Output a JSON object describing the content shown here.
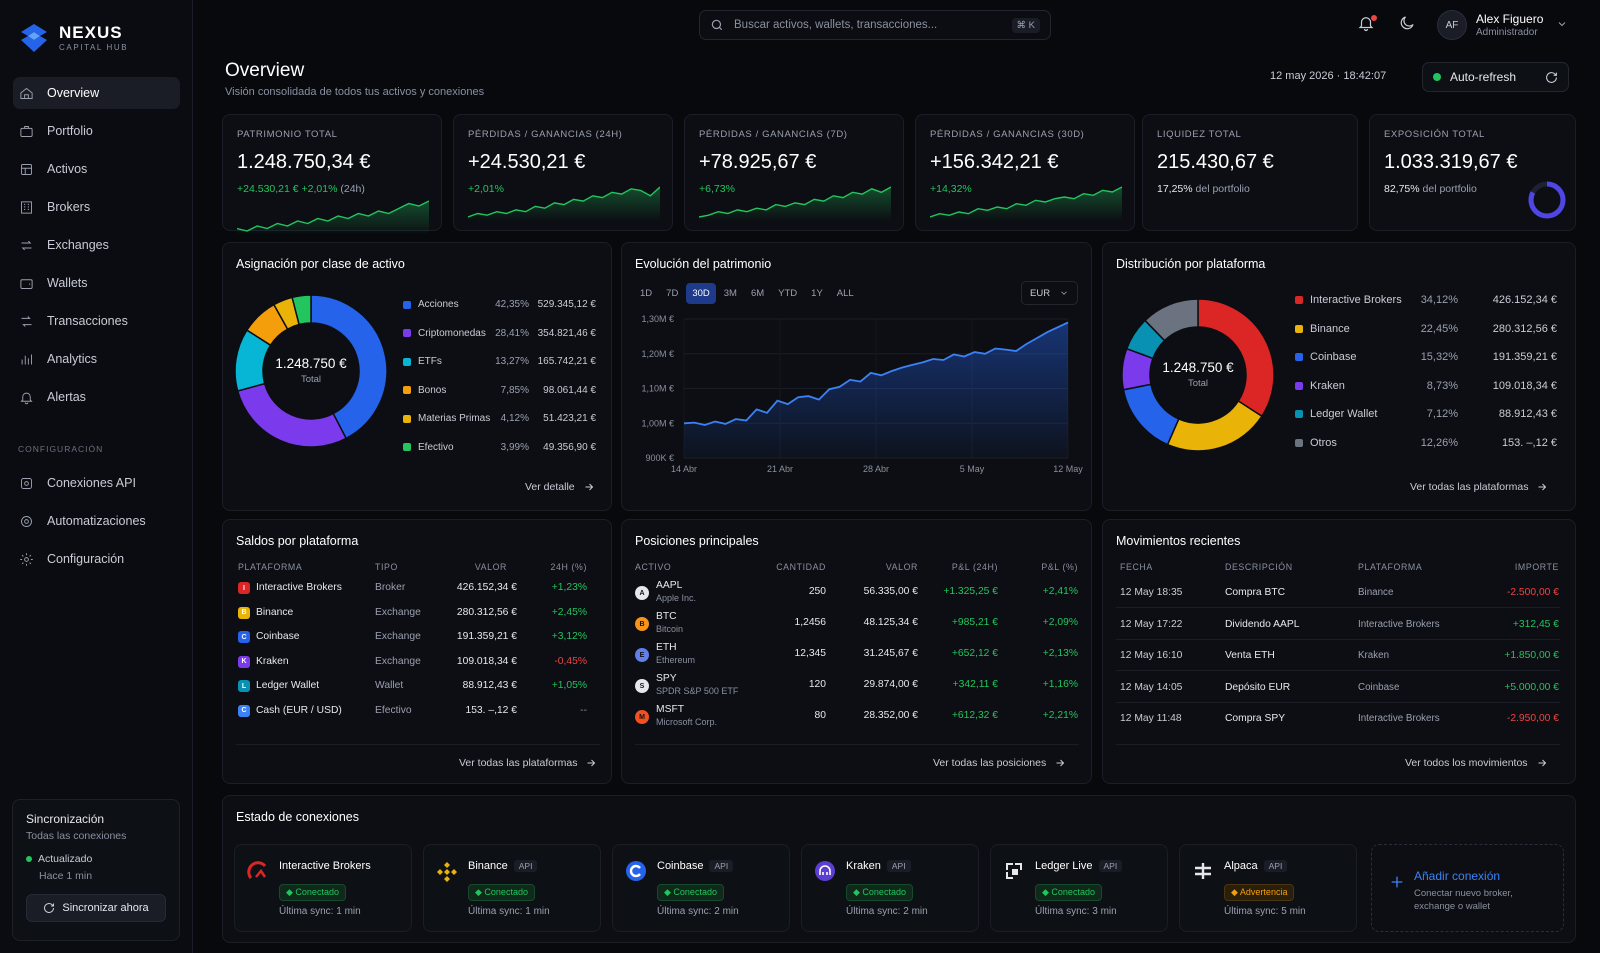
{
  "brand": {
    "title": "NEXUS",
    "subtitle": "CAPITAL HUB"
  },
  "nav": [
    {
      "label": "Overview",
      "icon": "home-icon"
    },
    {
      "label": "Portfolio",
      "icon": "briefcase-icon"
    },
    {
      "label": "Activos",
      "icon": "layers-icon"
    },
    {
      "label": "Brokers",
      "icon": "building-icon"
    },
    {
      "label": "Exchanges",
      "icon": "exchange-icon"
    },
    {
      "label": "Wallets",
      "icon": "wallet-icon"
    },
    {
      "label": "Transacciones",
      "icon": "arrows-icon"
    },
    {
      "label": "Analytics",
      "icon": "bar-chart-icon"
    },
    {
      "label": "Alertas",
      "icon": "bell-icon"
    }
  ],
  "config_section": "CONFIGURACIÓN",
  "config_nav": [
    {
      "label": "Conexiones API",
      "icon": "plug-icon"
    },
    {
      "label": "Automatizaciones",
      "icon": "automation-icon"
    },
    {
      "label": "Configuración",
      "icon": "gear-icon"
    }
  ],
  "sync": {
    "title": "Sincronización",
    "subtitle": "Todas las conexiones",
    "status": "Actualizado",
    "ago": "Hace 1 min",
    "button": "Sincronizar ahora"
  },
  "search": {
    "placeholder": "Buscar activos, wallets, transacciones...",
    "shortcut": "⌘ K"
  },
  "user": {
    "initials": "AF",
    "name": "Alex Figuero",
    "role": "Administrador"
  },
  "header": {
    "title": "Overview",
    "subtitle": "Visión consolidada de todos tus activos y conexiones",
    "datetime": "12 may 2026 · 18:42:07",
    "autorefresh": "Auto-refresh"
  },
  "kpis": [
    {
      "label": "PATRIMONIO TOTAL",
      "value": "1.248.750,34 €",
      "delta": "+24.530,21 €",
      "delta2": "+2,01%",
      "delta2_suffix": "(24h)"
    },
    {
      "label": "PÉRDIDAS / GANANCIAS (24H)",
      "value": "+24.530,21 €",
      "delta": "+2,01%"
    },
    {
      "label": "PÉRDIDAS / GANANCIAS (7D)",
      "value": "+78.925,67 €",
      "delta": "+6,73%"
    },
    {
      "label": "PÉRDIDAS / GANANCIAS (30D)",
      "value": "+156.342,21 €",
      "delta": "+14,32%"
    },
    {
      "label": "LIQUIDEZ TOTAL",
      "value": "215.430,67 €",
      "note_pct": "17,25%",
      "note": "del portfolio"
    },
    {
      "label": "EXPOSICIÓN TOTAL",
      "value": "1.033.319,67 €",
      "note_pct": "82,75%",
      "note": "del portfolio",
      "ring": 0.8275
    }
  ],
  "allocation": {
    "title": "Asignación por clase de activo",
    "center_value": "1.248.750 €",
    "center_label": "Total",
    "items": [
      {
        "name": "Acciones",
        "pct": "42,35%",
        "value": "529.345,12 €",
        "share": 42.35,
        "color": "#2563eb"
      },
      {
        "name": "Criptomonedas",
        "pct": "28,41%",
        "value": "354.821,46 €",
        "share": 28.41,
        "color": "#7c3aed"
      },
      {
        "name": "ETFs",
        "pct": "13,27%",
        "value": "165.742,21 €",
        "share": 13.27,
        "color": "#06b6d4"
      },
      {
        "name": "Bonos",
        "pct": "7,85%",
        "value": "98.061,44 €",
        "share": 7.85,
        "color": "#f59e0b"
      },
      {
        "name": "Materias Primas",
        "pct": "4,12%",
        "value": "51.423,21 €",
        "share": 4.12,
        "color": "#eab308"
      },
      {
        "name": "Efectivo",
        "pct": "3,99%",
        "value": "49.356,90 €",
        "share": 3.99,
        "color": "#22c55e"
      }
    ],
    "link": "Ver detalle"
  },
  "evolution": {
    "title": "Evolución del patrimonio",
    "ranges": [
      "1D",
      "7D",
      "30D",
      "3M",
      "6M",
      "YTD",
      "1Y",
      "ALL"
    ],
    "active_range": "30D",
    "currency": "EUR",
    "chart_data": {
      "type": "area",
      "yticks": [
        "1,30M €",
        "1,20M €",
        "1,10M €",
        "1,00M €",
        "900K €"
      ],
      "xticks": [
        "14 Abr",
        "21 Abr",
        "28 Abr",
        "5 May",
        "12 May"
      ],
      "ylim": [
        900000,
        1300000
      ],
      "values": [
        1000000,
        1002000,
        995000,
        1005000,
        998000,
        1012000,
        1008000,
        1040000,
        1030000,
        1065000,
        1055000,
        1075000,
        1078000,
        1068000,
        1098000,
        1105000,
        1125000,
        1120000,
        1145000,
        1138000,
        1150000,
        1160000,
        1168000,
        1175000,
        1185000,
        1182000,
        1198000,
        1192000,
        1205000,
        1200000,
        1215000,
        1212000,
        1208000,
        1228000,
        1245000,
        1262000,
        1276000,
        1290000
      ]
    }
  },
  "distribution": {
    "title": "Distribución por plataforma",
    "center_value": "1.248.750 €",
    "center_label": "Total",
    "items": [
      {
        "name": "Interactive Brokers",
        "pct": "34,12%",
        "value": "426.152,34 €",
        "share": 34.12,
        "color": "#dc2626"
      },
      {
        "name": "Binance",
        "pct": "22,45%",
        "value": "280.312,56 €",
        "share": 22.45,
        "color": "#eab308"
      },
      {
        "name": "Coinbase",
        "pct": "15,32%",
        "value": "191.359,21 €",
        "share": 15.32,
        "color": "#2563eb"
      },
      {
        "name": "Kraken",
        "pct": "8,73%",
        "value": "109.018,34 €",
        "share": 8.73,
        "color": "#7c3aed"
      },
      {
        "name": "Ledger Wallet",
        "pct": "7,12%",
        "value": "88.912,43 €",
        "share": 7.12,
        "color": "#0891b2"
      },
      {
        "name": "Otros",
        "pct": "12,26%",
        "value": "153. –,12 €",
        "share": 12.26,
        "color": "#6b7280"
      }
    ],
    "link": "Ver todas las plataformas"
  },
  "balances": {
    "title": "Saldos por plataforma",
    "headers": [
      "PLATAFORMA",
      "TIPO",
      "VALOR",
      "24H (%)"
    ],
    "rows": [
      {
        "name": "Interactive Brokers",
        "type": "Broker",
        "value": "426.152,34 €",
        "change": "+1,23%",
        "color": "#dc2626"
      },
      {
        "name": "Binance",
        "type": "Exchange",
        "value": "280.312,56 €",
        "change": "+2,45%",
        "color": "#eab308"
      },
      {
        "name": "Coinbase",
        "type": "Exchange",
        "value": "191.359,21 €",
        "change": "+3,12%",
        "color": "#2563eb"
      },
      {
        "name": "Kraken",
        "type": "Exchange",
        "value": "109.018,34 €",
        "change": "-0,45%",
        "color": "#7c3aed"
      },
      {
        "name": "Ledger Wallet",
        "type": "Wallet",
        "value": "88.912,43 €",
        "change": "+1,05%",
        "color": "#0891b2"
      },
      {
        "name": "Cash (EUR / USD)",
        "type": "Efectivo",
        "value": "153. –,12 €",
        "change": "--",
        "color": "#3b82f6"
      }
    ],
    "link": "Ver todas las plataformas"
  },
  "positions": {
    "title": "Posiciones principales",
    "headers": [
      "ACTIVO",
      "CANTIDAD",
      "VALOR",
      "P&L (24H)",
      "P&L (%)"
    ],
    "rows": [
      {
        "symbol": "AAPL",
        "name": "Apple Inc.",
        "qty": "250",
        "value": "56.335,00 €",
        "pnl": "+1.325,25 €",
        "pct": "+2,41%",
        "color": "#e5e7eb"
      },
      {
        "symbol": "BTC",
        "name": "Bitcoin",
        "qty": "1,2456",
        "value": "48.125,34 €",
        "pnl": "+985,21 €",
        "pct": "+2,09%",
        "color": "#f7931a"
      },
      {
        "symbol": "ETH",
        "name": "Ethereum",
        "qty": "12,345",
        "value": "31.245,67 €",
        "pnl": "+652,12 €",
        "pct": "+2,13%",
        "color": "#627eea"
      },
      {
        "symbol": "SPY",
        "name": "SPDR S&P 500 ETF",
        "qty": "120",
        "value": "29.874,00 €",
        "pnl": "+342,11 €",
        "pct": "+1,16%",
        "color": "#e5e7eb"
      },
      {
        "symbol": "MSFT",
        "name": "Microsoft Corp.",
        "qty": "80",
        "value": "28.352,00 €",
        "pnl": "+612,32 €",
        "pct": "+2,21%",
        "color": "#f25022"
      }
    ],
    "link": "Ver todas las posiciones"
  },
  "movements": {
    "title": "Movimientos recientes",
    "headers": [
      "FECHA",
      "DESCRIPCIÓN",
      "PLATAFORMA",
      "IMPORTE"
    ],
    "rows": [
      {
        "date": "12 May 18:35",
        "desc": "Compra BTC",
        "platform": "Binance",
        "amount": "-2.500,00 €",
        "neg": true
      },
      {
        "date": "12 May 17:22",
        "desc": "Dividendo AAPL",
        "platform": "Interactive Brokers",
        "amount": "+312,45 €",
        "neg": false
      },
      {
        "date": "12 May 16:10",
        "desc": "Venta ETH",
        "platform": "Kraken",
        "amount": "+1.850,00 €",
        "neg": false
      },
      {
        "date": "12 May 14:05",
        "desc": "Depósito EUR",
        "platform": "Coinbase",
        "amount": "+5.000,00 €",
        "neg": false
      },
      {
        "date": "12 May 11:48",
        "desc": "Compra SPY",
        "platform": "Interactive Brokers",
        "amount": "-2.950,00 €",
        "neg": true
      }
    ],
    "link": "Ver todos los movimientos"
  },
  "connections": {
    "title": "Estado de conexiones",
    "items": [
      {
        "name": "Interactive Brokers",
        "api": "",
        "status": "Conectado",
        "sync": "Última sync: 1 min",
        "warn": false,
        "icon": "ib-logo-icon"
      },
      {
        "name": "Binance",
        "api": "API",
        "status": "Conectado",
        "sync": "Última sync: 1 min",
        "warn": false,
        "icon": "binance-logo-icon"
      },
      {
        "name": "Coinbase",
        "api": "API",
        "status": "Conectado",
        "sync": "Última sync: 2 min",
        "warn": false,
        "icon": "coinbase-logo-icon"
      },
      {
        "name": "Kraken",
        "api": "API",
        "status": "Conectado",
        "sync": "Última sync: 2 min",
        "warn": false,
        "icon": "kraken-logo-icon"
      },
      {
        "name": "Ledger Live",
        "api": "API",
        "status": "Conectado",
        "sync": "Última sync: 3 min",
        "warn": false,
        "icon": "ledger-logo-icon"
      },
      {
        "name": "Alpaca",
        "api": "API",
        "status": "Advertencia",
        "sync": "Última sync: 5 min",
        "warn": true,
        "icon": "alpaca-logo-icon"
      }
    ],
    "add_title": "Añadir conexión",
    "add_sub": "Conectar nuevo broker, exchange o wallet"
  }
}
